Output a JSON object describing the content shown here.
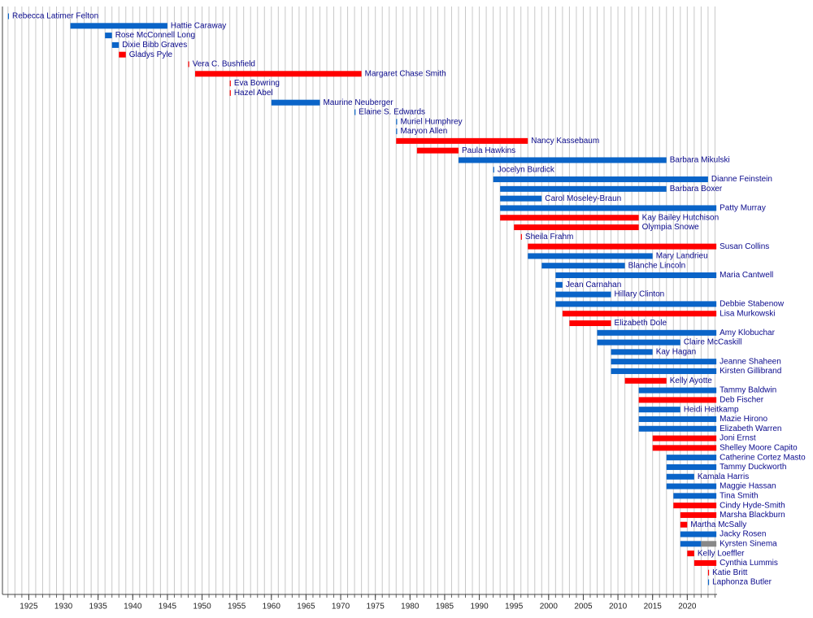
{
  "chart_data": {
    "type": "gantt",
    "xlim": [
      1921.2,
      2024.3
    ],
    "xticks": [
      1925,
      1930,
      1935,
      1940,
      1945,
      1950,
      1955,
      1960,
      1965,
      1970,
      1975,
      1980,
      1985,
      1990,
      1995,
      2000,
      2005,
      2010,
      2015,
      2020
    ],
    "minor_xticks": [
      1922,
      1923,
      1924,
      1925,
      1926,
      1927,
      1928,
      1929,
      1930,
      1931,
      1932,
      1933,
      1934,
      1935,
      1936,
      1937,
      1938,
      1939,
      1940,
      1941,
      1942,
      1943,
      1944,
      1945,
      1946,
      1947,
      1948,
      1949,
      1950,
      1951,
      1952,
      1953,
      1954,
      1955,
      1956,
      1957,
      1958,
      1959,
      1960,
      1961,
      1962,
      1963,
      1964,
      1965,
      1966,
      1967,
      1968,
      1969,
      1970,
      1971,
      1972,
      1973,
      1974,
      1975,
      1976,
      1977,
      1978,
      1979,
      1980,
      1981,
      1982,
      1983,
      1984,
      1985,
      1986,
      1987,
      1988,
      1989,
      1990,
      1991,
      1992,
      1993,
      1994,
      1995,
      1996,
      1997,
      1998,
      1999,
      2000,
      2001,
      2002,
      2003,
      2004,
      2005,
      2006,
      2007,
      2008,
      2009,
      2010,
      2011,
      2012,
      2013,
      2014,
      2015,
      2016,
      2017,
      2018,
      2019,
      2020,
      2021,
      2022,
      2023,
      2024
    ],
    "grid": true,
    "rows": [
      {
        "name": "Rebecca Latimer Felton",
        "segments": [
          {
            "start": 1922,
            "end": 1922,
            "color": "#0a64c8"
          }
        ]
      },
      {
        "name": "Hattie Caraway",
        "segments": [
          {
            "start": 1931,
            "end": 1945,
            "color": "#0a64c8"
          }
        ]
      },
      {
        "name": "Rose McConnell Long",
        "segments": [
          {
            "start": 1936,
            "end": 1937,
            "color": "#0a64c8"
          }
        ]
      },
      {
        "name": "Dixie Bibb Graves",
        "segments": [
          {
            "start": 1937,
            "end": 1938,
            "color": "#0a64c8"
          }
        ]
      },
      {
        "name": "Gladys Pyle",
        "segments": [
          {
            "start": 1938,
            "end": 1939,
            "color": "#ff0000"
          }
        ]
      },
      {
        "name": "Vera C. Bushfield",
        "segments": [
          {
            "start": 1948,
            "end": 1948,
            "color": "#ff0000"
          }
        ]
      },
      {
        "name": "Margaret Chase Smith",
        "segments": [
          {
            "start": 1949,
            "end": 1973,
            "color": "#ff0000"
          }
        ]
      },
      {
        "name": "Eva Bowring",
        "segments": [
          {
            "start": 1954,
            "end": 1954,
            "color": "#ff0000"
          }
        ]
      },
      {
        "name": "Hazel Abel",
        "segments": [
          {
            "start": 1954,
            "end": 1954,
            "color": "#ff0000"
          }
        ]
      },
      {
        "name": "Maurine Neuberger",
        "segments": [
          {
            "start": 1960,
            "end": 1967,
            "color": "#0a64c8"
          }
        ]
      },
      {
        "name": "Elaine S. Edwards",
        "segments": [
          {
            "start": 1972,
            "end": 1972,
            "color": "#0a64c8"
          }
        ]
      },
      {
        "name": "Muriel Humphrey",
        "segments": [
          {
            "start": 1978,
            "end": 1978,
            "color": "#0a64c8"
          }
        ]
      },
      {
        "name": "Maryon Allen",
        "segments": [
          {
            "start": 1978,
            "end": 1978,
            "color": "#0a64c8"
          }
        ]
      },
      {
        "name": "Nancy Kassebaum",
        "segments": [
          {
            "start": 1978,
            "end": 1997,
            "color": "#ff0000"
          }
        ]
      },
      {
        "name": "Paula Hawkins",
        "segments": [
          {
            "start": 1981,
            "end": 1987,
            "color": "#ff0000"
          }
        ]
      },
      {
        "name": "Barbara Mikulski",
        "segments": [
          {
            "start": 1987,
            "end": 2017,
            "color": "#0a64c8"
          }
        ]
      },
      {
        "name": "Jocelyn Burdick",
        "segments": [
          {
            "start": 1992,
            "end": 1992,
            "color": "#0a64c8"
          }
        ]
      },
      {
        "name": "Dianne Feinstein",
        "segments": [
          {
            "start": 1992,
            "end": 2023,
            "color": "#0a64c8"
          }
        ]
      },
      {
        "name": "Barbara Boxer",
        "segments": [
          {
            "start": 1993,
            "end": 2017,
            "color": "#0a64c8"
          }
        ]
      },
      {
        "name": "Carol Moseley-Braun",
        "segments": [
          {
            "start": 1993,
            "end": 1999,
            "color": "#0a64c8"
          }
        ]
      },
      {
        "name": "Patty Murray",
        "segments": [
          {
            "start": 1993,
            "end": 2024.2,
            "color": "#0a64c8"
          }
        ]
      },
      {
        "name": "Kay Bailey Hutchison",
        "segments": [
          {
            "start": 1993,
            "end": 2013,
            "color": "#ff0000"
          }
        ]
      },
      {
        "name": "Olympia Snowe",
        "segments": [
          {
            "start": 1995,
            "end": 2013,
            "color": "#ff0000"
          }
        ]
      },
      {
        "name": "Sheila Frahm",
        "segments": [
          {
            "start": 1996,
            "end": 1996,
            "color": "#ff0000"
          }
        ]
      },
      {
        "name": "Susan Collins",
        "segments": [
          {
            "start": 1997,
            "end": 2024.2,
            "color": "#ff0000"
          }
        ]
      },
      {
        "name": "Mary Landrieu",
        "segments": [
          {
            "start": 1997,
            "end": 2015,
            "color": "#0a64c8"
          }
        ]
      },
      {
        "name": "Blanche Lincoln",
        "segments": [
          {
            "start": 1999,
            "end": 2011,
            "color": "#0a64c8"
          }
        ]
      },
      {
        "name": "Maria Cantwell",
        "segments": [
          {
            "start": 2001,
            "end": 2024.2,
            "color": "#0a64c8"
          }
        ]
      },
      {
        "name": "Jean Carnahan",
        "segments": [
          {
            "start": 2001,
            "end": 2002,
            "color": "#0a64c8"
          }
        ]
      },
      {
        "name": "Hillary Clinton",
        "segments": [
          {
            "start": 2001,
            "end": 2009,
            "color": "#0a64c8"
          }
        ]
      },
      {
        "name": "Debbie Stabenow",
        "segments": [
          {
            "start": 2001,
            "end": 2024.2,
            "color": "#0a64c8"
          }
        ]
      },
      {
        "name": "Lisa Murkowski",
        "segments": [
          {
            "start": 2002,
            "end": 2024.2,
            "color": "#ff0000"
          }
        ]
      },
      {
        "name": "Elizabeth Dole",
        "segments": [
          {
            "start": 2003,
            "end": 2009,
            "color": "#ff0000"
          }
        ]
      },
      {
        "name": "Amy Klobuchar",
        "segments": [
          {
            "start": 2007,
            "end": 2024.2,
            "color": "#0a64c8"
          }
        ]
      },
      {
        "name": "Claire McCaskill",
        "segments": [
          {
            "start": 2007,
            "end": 2019,
            "color": "#0a64c8"
          }
        ]
      },
      {
        "name": "Kay Hagan",
        "segments": [
          {
            "start": 2009,
            "end": 2015,
            "color": "#0a64c8"
          }
        ]
      },
      {
        "name": "Jeanne Shaheen",
        "segments": [
          {
            "start": 2009,
            "end": 2024.2,
            "color": "#0a64c8"
          }
        ]
      },
      {
        "name": "Kirsten Gillibrand",
        "segments": [
          {
            "start": 2009,
            "end": 2024.2,
            "color": "#0a64c8"
          }
        ]
      },
      {
        "name": "Kelly Ayotte",
        "segments": [
          {
            "start": 2011,
            "end": 2017,
            "color": "#ff0000"
          }
        ]
      },
      {
        "name": "Tammy Baldwin",
        "segments": [
          {
            "start": 2013,
            "end": 2024.2,
            "color": "#0a64c8"
          }
        ]
      },
      {
        "name": "Deb Fischer",
        "segments": [
          {
            "start": 2013,
            "end": 2024.2,
            "color": "#ff0000"
          }
        ]
      },
      {
        "name": "Heidi Heitkamp",
        "segments": [
          {
            "start": 2013,
            "end": 2019,
            "color": "#0a64c8"
          }
        ]
      },
      {
        "name": "Mazie Hirono",
        "segments": [
          {
            "start": 2013,
            "end": 2024.2,
            "color": "#0a64c8"
          }
        ]
      },
      {
        "name": "Elizabeth Warren",
        "segments": [
          {
            "start": 2013,
            "end": 2024.2,
            "color": "#0a64c8"
          }
        ]
      },
      {
        "name": "Joni Ernst",
        "segments": [
          {
            "start": 2015,
            "end": 2024.2,
            "color": "#ff0000"
          }
        ]
      },
      {
        "name": "Shelley Moore Capito",
        "segments": [
          {
            "start": 2015,
            "end": 2024.2,
            "color": "#ff0000"
          }
        ]
      },
      {
        "name": "Catherine Cortez Masto",
        "segments": [
          {
            "start": 2017,
            "end": 2024.2,
            "color": "#0a64c8"
          }
        ]
      },
      {
        "name": "Tammy Duckworth",
        "segments": [
          {
            "start": 2017,
            "end": 2024.2,
            "color": "#0a64c8"
          }
        ]
      },
      {
        "name": "Kamala Harris",
        "segments": [
          {
            "start": 2017,
            "end": 2021,
            "color": "#0a64c8"
          }
        ]
      },
      {
        "name": "Maggie Hassan",
        "segments": [
          {
            "start": 2017,
            "end": 2024.2,
            "color": "#0a64c8"
          }
        ]
      },
      {
        "name": "Tina Smith",
        "segments": [
          {
            "start": 2018,
            "end": 2024.2,
            "color": "#0a64c8"
          }
        ]
      },
      {
        "name": "Cindy Hyde-Smith",
        "segments": [
          {
            "start": 2018,
            "end": 2024.2,
            "color": "#ff0000"
          }
        ]
      },
      {
        "name": "Marsha Blackburn",
        "segments": [
          {
            "start": 2019,
            "end": 2024.2,
            "color": "#ff0000"
          }
        ]
      },
      {
        "name": "Martha McSally",
        "segments": [
          {
            "start": 2019,
            "end": 2020,
            "color": "#ff0000"
          }
        ]
      },
      {
        "name": "Jacky Rosen",
        "segments": [
          {
            "start": 2019,
            "end": 2024.2,
            "color": "#0a64c8"
          }
        ]
      },
      {
        "name": "Kyrsten Sinema",
        "segments": [
          {
            "start": 2019,
            "end": 2022,
            "color": "#0a64c8"
          },
          {
            "start": 2022,
            "end": 2024.2,
            "color": "#888888"
          }
        ]
      },
      {
        "name": "Kelly Loeffler",
        "segments": [
          {
            "start": 2020,
            "end": 2021,
            "color": "#ff0000"
          }
        ]
      },
      {
        "name": "Cynthia Lummis",
        "segments": [
          {
            "start": 2021,
            "end": 2024.2,
            "color": "#ff0000"
          }
        ]
      },
      {
        "name": "Katie Britt",
        "segments": [
          {
            "start": 2023,
            "end": 2023,
            "color": "#ff0000"
          }
        ]
      },
      {
        "name": "Laphonza Butler",
        "segments": [
          {
            "start": 2023,
            "end": 2023,
            "color": "#0a64c8"
          }
        ]
      }
    ]
  }
}
